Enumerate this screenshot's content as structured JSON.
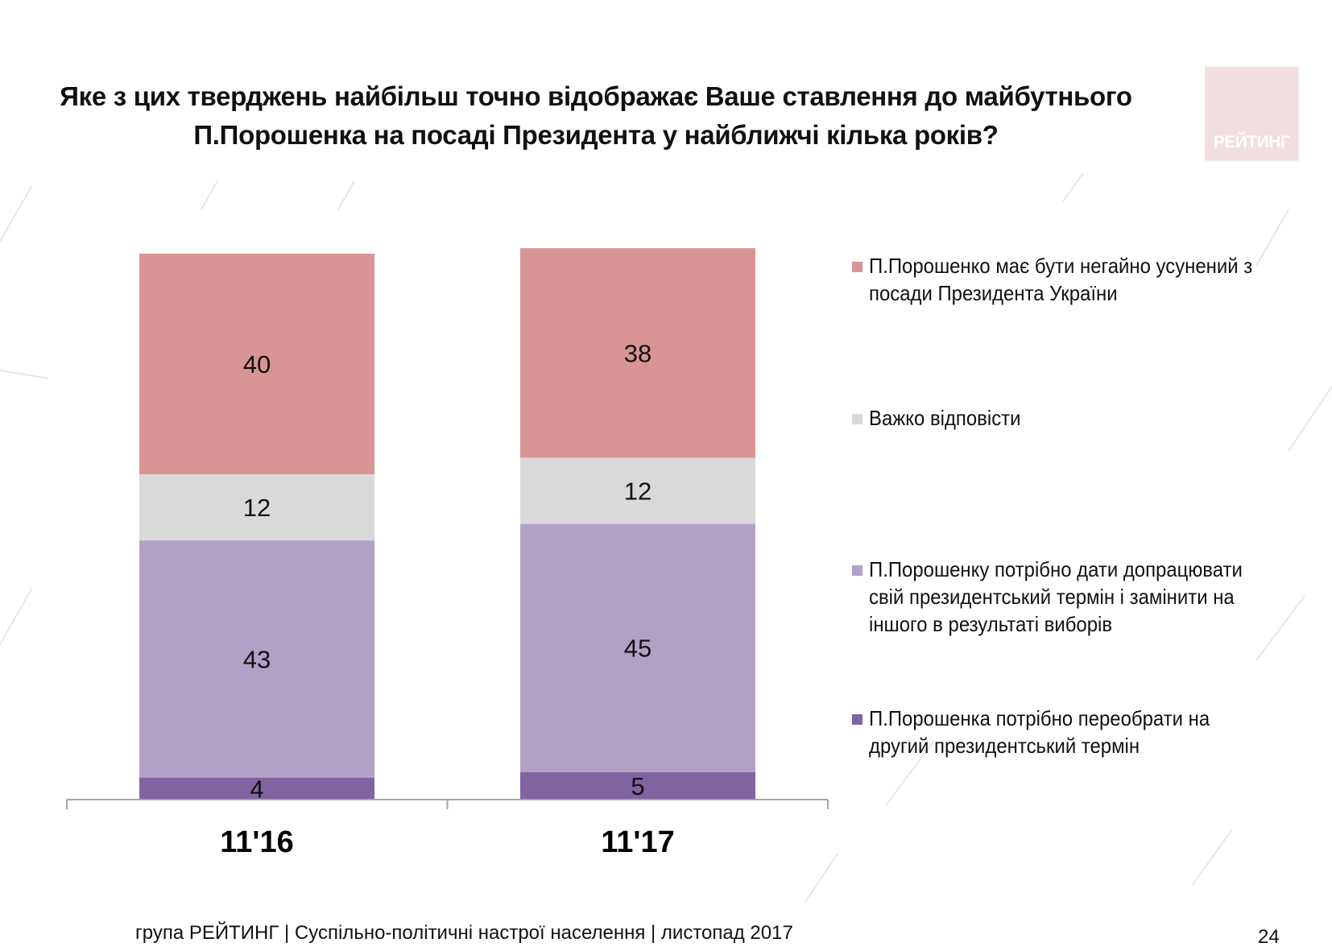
{
  "title": "Яке з цих тверджень найбільш точно відображає Ваше ставлення до майбутнього П.Порошенка на посаді Президента у найближчі кілька років?",
  "logo_text": "РЕЙТИНГ",
  "footer": "група РЕЙТИНГ  | Суспільно-політичні настрої населення  |  листопад 2017",
  "page_number": "24",
  "colors": {
    "removed": "#d99594",
    "hard": "#d9d9d9",
    "finish_term": "#b2a1c7",
    "reelect": "#8064a2",
    "axis": "#a6a6a6"
  },
  "chart_data": {
    "type": "bar",
    "stacked": true,
    "categories": [
      "11'16",
      "11'17"
    ],
    "series": [
      {
        "name": "П.Порошенка потрібно переобрати на другий президентський термін",
        "color": "#8064a2",
        "values": [
          4,
          5
        ]
      },
      {
        "name": "П.Порошенку потрібно дати допрацювати свій президентський термін і замінити на іншого в результаті виборів",
        "color": "#b2a1c7",
        "values": [
          43,
          45
        ]
      },
      {
        "name": "Важко відповісти",
        "color": "#d9d9d9",
        "values": [
          12,
          12
        ]
      },
      {
        "name": "П.Порошенко має бути негайно усунений з посади Президента України",
        "color": "#d99594",
        "values": [
          40,
          38
        ]
      }
    ],
    "legend_order": [
      3,
      2,
      1,
      0
    ],
    "legend_position": "right",
    "ylim": [
      0,
      99
    ],
    "title": "",
    "xlabel": "",
    "ylabel": "",
    "grid": false
  }
}
